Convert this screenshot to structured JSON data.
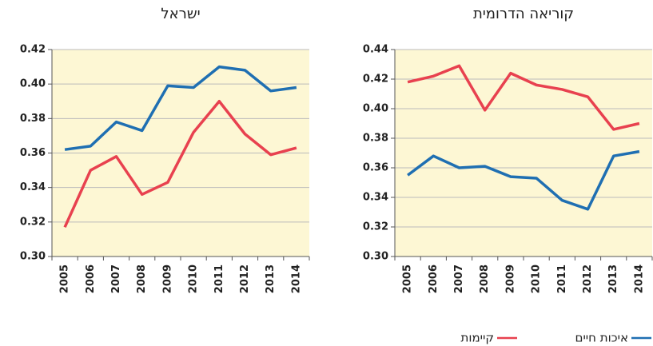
{
  "chart_data": [
    {
      "type": "line",
      "title": "ישראל",
      "categories": [
        "2005",
        "2006",
        "2007",
        "2008",
        "2009",
        "2010",
        "2011",
        "2012",
        "2013",
        "2014"
      ],
      "series": [
        {
          "name": "איכות חיים",
          "color": "#1f6fb2",
          "values": [
            0.362,
            0.364,
            0.378,
            0.373,
            0.399,
            0.398,
            0.41,
            0.408,
            0.396,
            0.398
          ]
        },
        {
          "name": "קיימות",
          "color": "#e8414f",
          "values": [
            0.317,
            0.35,
            0.358,
            0.336,
            0.343,
            0.372,
            0.39,
            0.371,
            0.359,
            0.363
          ]
        }
      ],
      "ylim": [
        0.3,
        0.42
      ],
      "yticks": [
        {
          "value": 0.3,
          "label": "0.30"
        },
        0.32,
        0.34,
        0.36,
        0.38,
        {
          "value": 0.4,
          "label": "0.40"
        },
        0.42
      ],
      "grid": true
    },
    {
      "type": "line",
      "title": "קוריאה הדרומית",
      "categories": [
        "2005",
        "2006",
        "2007",
        "2008",
        "2009",
        "2010",
        "2011",
        "2012",
        "2013",
        "2014"
      ],
      "series": [
        {
          "name": "איכות חיים",
          "color": "#1f6fb2",
          "values": [
            0.355,
            0.368,
            0.36,
            0.361,
            0.354,
            0.353,
            0.338,
            0.332,
            0.368,
            0.371
          ]
        },
        {
          "name": "קיימות",
          "color": "#e8414f",
          "values": [
            0.418,
            0.422,
            0.429,
            0.399,
            0.424,
            0.416,
            0.413,
            0.408,
            0.386,
            0.39
          ]
        }
      ],
      "ylim": [
        0.3,
        0.44
      ],
      "yticks": [
        {
          "value": 0.3,
          "label": "0.30"
        },
        0.32,
        0.34,
        0.36,
        0.38,
        {
          "value": 0.4,
          "label": "0.40"
        },
        0.42,
        0.44
      ],
      "grid": true
    }
  ]
}
